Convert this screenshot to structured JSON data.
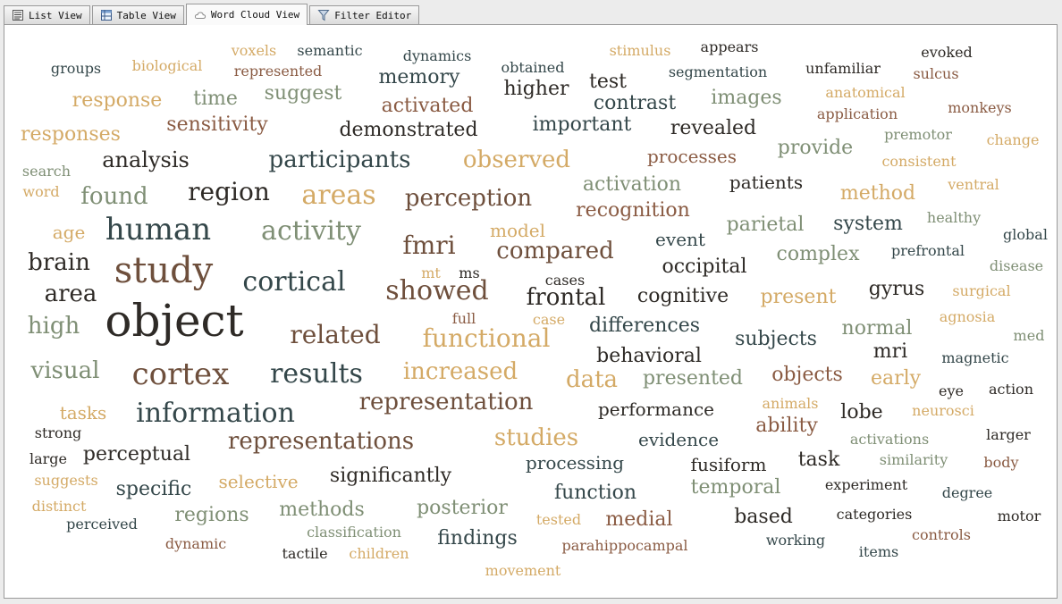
{
  "tabs": [
    {
      "label": "List View",
      "icon": "list-icon",
      "active": false
    },
    {
      "label": "Table View",
      "icon": "table-icon",
      "active": false
    },
    {
      "label": "Word Cloud View",
      "icon": "cloud-icon",
      "active": true
    },
    {
      "label": "Filter Editor",
      "icon": "funnel-icon",
      "active": false
    }
  ],
  "colors": {
    "dark": "#2e2a26",
    "slate": "#34474a",
    "brown": "#6e4f3c",
    "sage": "#7f8f75",
    "gold": "#d4aa66",
    "rust": "#8a5b43"
  },
  "words": [
    [
      "object",
      "dark",
      50,
      194,
      358
    ],
    [
      "study",
      "brown",
      40,
      182,
      302
    ],
    [
      "cortex",
      "brown",
      34,
      201,
      418
    ],
    [
      "human",
      "slate",
      34,
      176,
      256
    ],
    [
      "information",
      "slate",
      30,
      240,
      462
    ],
    [
      "cortical",
      "slate",
      30,
      328,
      315
    ],
    [
      "results",
      "slate",
      30,
      353,
      418
    ],
    [
      "showed",
      "brown",
      30,
      488,
      325
    ],
    [
      "activity",
      "sage",
      30,
      347,
      258
    ],
    [
      "areas",
      "gold",
      30,
      378,
      218
    ],
    [
      "region",
      "dark",
      28,
      255,
      214
    ],
    [
      "fmri",
      "brown",
      28,
      479,
      274
    ],
    [
      "related",
      "brown",
      28,
      374,
      374
    ],
    [
      "functional",
      "gold",
      28,
      543,
      378
    ],
    [
      "brain",
      "dark",
      26,
      65,
      293
    ],
    [
      "found",
      "sage",
      26,
      127,
      219
    ],
    [
      "visual",
      "sage",
      26,
      72,
      414
    ],
    [
      "high",
      "sage",
      26,
      59,
      364
    ],
    [
      "area",
      "dark",
      26,
      78,
      328
    ],
    [
      "representations",
      "brown",
      26,
      358,
      493
    ],
    [
      "representation",
      "brown",
      26,
      498,
      449
    ],
    [
      "increased",
      "gold",
      26,
      514,
      415
    ],
    [
      "data",
      "gold",
      26,
      661,
      424
    ],
    [
      "participants",
      "slate",
      26,
      379,
      178
    ],
    [
      "perception",
      "brown",
      26,
      523,
      221
    ],
    [
      "observed",
      "gold",
      26,
      577,
      178
    ],
    [
      "compared",
      "brown",
      26,
      620,
      280
    ],
    [
      "frontal",
      "dark",
      26,
      632,
      332
    ],
    [
      "studies",
      "gold",
      26,
      599,
      489
    ],
    [
      "analysis",
      "dark",
      24,
      162,
      178
    ],
    [
      "memory",
      "slate",
      22,
      468,
      86
    ],
    [
      "higher",
      "dark",
      22,
      599,
      99
    ],
    [
      "activated",
      "rust",
      22,
      477,
      118
    ],
    [
      "demonstrated",
      "dark",
      22,
      456,
      145
    ],
    [
      "important",
      "slate",
      22,
      650,
      139
    ],
    [
      "contrast",
      "slate",
      22,
      709,
      115
    ],
    [
      "revealed",
      "dark",
      22,
      797,
      143
    ],
    [
      "response",
      "gold",
      22,
      130,
      112
    ],
    [
      "time",
      "sage",
      22,
      240,
      110
    ],
    [
      "suggest",
      "sage",
      22,
      338,
      104
    ],
    [
      "sensitivity",
      "rust",
      22,
      242,
      139
    ],
    [
      "responses",
      "gold",
      22,
      78,
      150
    ],
    [
      "test",
      "dark",
      22,
      679,
      91
    ],
    [
      "images",
      "sage",
      22,
      834,
      109
    ],
    [
      "provide",
      "sage",
      22,
      911,
      165
    ],
    [
      "processes",
      "rust",
      20,
      773,
      174
    ],
    [
      "patients",
      "dark",
      20,
      856,
      203
    ],
    [
      "method",
      "gold",
      22,
      981,
      216
    ],
    [
      "activation",
      "sage",
      22,
      706,
      206
    ],
    [
      "recognition",
      "rust",
      22,
      707,
      235
    ],
    [
      "system",
      "slate",
      22,
      970,
      250
    ],
    [
      "parietal",
      "sage",
      22,
      855,
      251
    ],
    [
      "complex",
      "sage",
      22,
      914,
      284
    ],
    [
      "model",
      "gold",
      20,
      578,
      257
    ],
    [
      "event",
      "slate",
      20,
      760,
      267
    ],
    [
      "occipital",
      "dark",
      22,
      787,
      298
    ],
    [
      "cognitive",
      "dark",
      22,
      763,
      331
    ],
    [
      "present",
      "gold",
      22,
      892,
      332
    ],
    [
      "gyrus",
      "dark",
      22,
      1002,
      323
    ],
    [
      "differences",
      "slate",
      22,
      720,
      364
    ],
    [
      "normal",
      "sage",
      22,
      980,
      367
    ],
    [
      "subjects",
      "slate",
      22,
      867,
      379
    ],
    [
      "mri",
      "dark",
      22,
      995,
      393
    ],
    [
      "behavioral",
      "dark",
      22,
      725,
      398
    ],
    [
      "presented",
      "sage",
      22,
      774,
      423
    ],
    [
      "objects",
      "rust",
      22,
      902,
      419
    ],
    [
      "early",
      "gold",
      22,
      1001,
      423
    ],
    [
      "performance",
      "dark",
      20,
      733,
      457
    ],
    [
      "ability",
      "rust",
      22,
      879,
      476
    ],
    [
      "lobe",
      "dark",
      22,
      963,
      461
    ],
    [
      "evidence",
      "slate",
      20,
      758,
      491
    ],
    [
      "processing",
      "slate",
      20,
      642,
      517
    ],
    [
      "fusiform",
      "dark",
      20,
      814,
      519
    ],
    [
      "task",
      "dark",
      22,
      915,
      514
    ],
    [
      "function",
      "slate",
      22,
      665,
      551
    ],
    [
      "temporal",
      "sage",
      22,
      822,
      545
    ],
    [
      "significantly",
      "dark",
      22,
      436,
      532
    ],
    [
      "selective",
      "gold",
      20,
      288,
      538
    ],
    [
      "perceptual",
      "dark",
      22,
      152,
      508
    ],
    [
      "specific",
      "slate",
      22,
      171,
      547
    ],
    [
      "regions",
      "sage",
      22,
      236,
      576
    ],
    [
      "methods",
      "sage",
      22,
      359,
      570
    ],
    [
      "posterior",
      "sage",
      22,
      516,
      568
    ],
    [
      "medial",
      "rust",
      22,
      714,
      581
    ],
    [
      "based",
      "dark",
      22,
      853,
      578
    ],
    [
      "findings",
      "slate",
      22,
      533,
      602
    ],
    [
      "tasks",
      "gold",
      20,
      92,
      461
    ],
    [
      "age",
      "gold",
      20,
      76,
      259
    ],
    [
      "search",
      "sage",
      16,
      51,
      191
    ],
    [
      "word",
      "gold",
      16,
      45,
      214
    ],
    [
      "groups",
      "slate",
      16,
      84,
      76
    ],
    [
      "biological",
      "gold",
      16,
      186,
      73
    ],
    [
      "voxels",
      "gold",
      16,
      283,
      56
    ],
    [
      "semantic",
      "slate",
      16,
      368,
      56
    ],
    [
      "represented",
      "rust",
      16,
      310,
      79
    ],
    [
      "dynamics",
      "slate",
      16,
      488,
      62
    ],
    [
      "obtained",
      "slate",
      16,
      595,
      75
    ],
    [
      "stimulus",
      "gold",
      16,
      715,
      56
    ],
    [
      "appears",
      "dark",
      16,
      815,
      52
    ],
    [
      "segmentation",
      "slate",
      16,
      802,
      80
    ],
    [
      "unfamiliar",
      "dark",
      16,
      942,
      76
    ],
    [
      "evoked",
      "dark",
      16,
      1058,
      58
    ],
    [
      "sulcus",
      "rust",
      16,
      1046,
      82
    ],
    [
      "anatomical",
      "gold",
      16,
      967,
      103
    ],
    [
      "application",
      "rust",
      16,
      958,
      127
    ],
    [
      "monkeys",
      "rust",
      16,
      1095,
      120
    ],
    [
      "premotor",
      "sage",
      16,
      1026,
      150
    ],
    [
      "change",
      "gold",
      16,
      1132,
      156
    ],
    [
      "consistent",
      "gold",
      16,
      1027,
      180
    ],
    [
      "ventral",
      "gold",
      16,
      1088,
      206
    ],
    [
      "healthy",
      "sage",
      16,
      1066,
      243
    ],
    [
      "global",
      "slate",
      16,
      1146,
      262
    ],
    [
      "prefrontal",
      "slate",
      16,
      1037,
      280
    ],
    [
      "disease",
      "sage",
      16,
      1136,
      297
    ],
    [
      "surgical",
      "gold",
      16,
      1097,
      325
    ],
    [
      "agnosia",
      "gold",
      16,
      1081,
      354
    ],
    [
      "med",
      "sage",
      16,
      1150,
      375
    ],
    [
      "magnetic",
      "slate",
      16,
      1090,
      400
    ],
    [
      "eye",
      "dark",
      16,
      1063,
      437
    ],
    [
      "action",
      "dark",
      16,
      1130,
      435
    ],
    [
      "neurosci",
      "gold",
      16,
      1054,
      459
    ],
    [
      "activations",
      "sage",
      16,
      994,
      491
    ],
    [
      "larger",
      "dark",
      16,
      1127,
      486
    ],
    [
      "similarity",
      "sage",
      16,
      1021,
      514
    ],
    [
      "body",
      "rust",
      16,
      1119,
      517
    ],
    [
      "experiment",
      "dark",
      16,
      968,
      542
    ],
    [
      "degree",
      "slate",
      16,
      1081,
      551
    ],
    [
      "categories",
      "dark",
      16,
      977,
      575
    ],
    [
      "motor",
      "dark",
      16,
      1139,
      577
    ],
    [
      "controls",
      "rust",
      16,
      1052,
      598
    ],
    [
      "items",
      "slate",
      16,
      982,
      617
    ],
    [
      "working",
      "slate",
      16,
      889,
      604
    ],
    [
      "parahippocampal",
      "rust",
      16,
      698,
      610
    ],
    [
      "movement",
      "gold",
      16,
      584,
      638
    ],
    [
      "tested",
      "gold",
      16,
      624,
      581
    ],
    [
      "animals",
      "gold",
      16,
      883,
      451
    ],
    [
      "case",
      "gold",
      16,
      613,
      357
    ],
    [
      "cases",
      "dark",
      16,
      631,
      313
    ],
    [
      "full",
      "rust",
      16,
      518,
      356
    ],
    [
      "mt",
      "gold",
      16,
      481,
      305
    ],
    [
      "ms",
      "dark",
      16,
      524,
      305
    ],
    [
      "classification",
      "sage",
      16,
      395,
      595
    ],
    [
      "children",
      "gold",
      16,
      423,
      619
    ],
    [
      "tactile",
      "dark",
      16,
      340,
      619
    ],
    [
      "dynamic",
      "rust",
      16,
      218,
      608
    ],
    [
      "perceived",
      "slate",
      16,
      113,
      586
    ],
    [
      "distinct",
      "gold",
      16,
      65,
      566
    ],
    [
      "suggests",
      "gold",
      16,
      73,
      537
    ],
    [
      "large",
      "dark",
      16,
      53,
      513
    ],
    [
      "strong",
      "dark",
      16,
      64,
      484
    ]
  ]
}
